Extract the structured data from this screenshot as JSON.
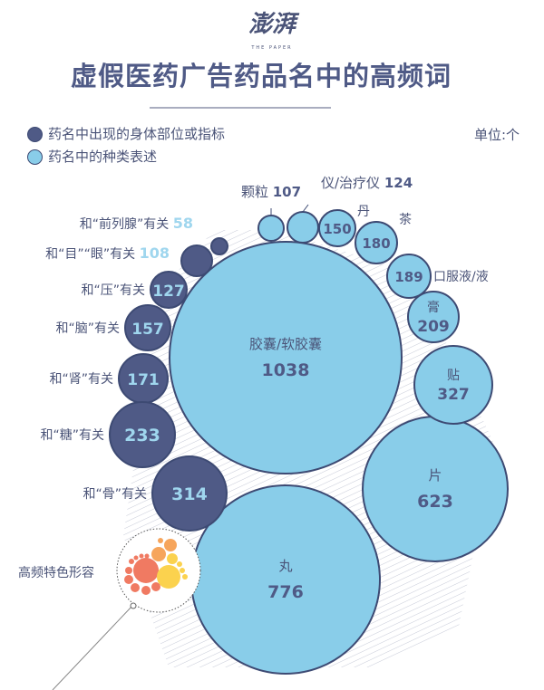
{
  "logo": {
    "text": "澎湃",
    "sub": "THE PAPER"
  },
  "title": "虚假医药广告药品名中的高频词",
  "legend": [
    {
      "label": "药名中出现的身体部位或指标",
      "color": "#4f5a86"
    },
    {
      "label": "药名中的种类表述",
      "color": "#89cde9"
    }
  ],
  "unit": "单位:个",
  "magnifier_label": "高频特色形容",
  "chart_data": {
    "type": "bubble",
    "title": "虚假医药广告药品名中的高频词",
    "unit": "个",
    "series": [
      {
        "name": "药名中出现的身体部位或指标",
        "color": "#4f5a86",
        "points": [
          {
            "label": "和“前列腺”有关",
            "value": 58
          },
          {
            "label": "和“目”“眼”有关",
            "value": 108
          },
          {
            "label": "和“压”有关",
            "value": 127
          },
          {
            "label": "和“脑”有关",
            "value": 157
          },
          {
            "label": "和“肾”有关",
            "value": 171
          },
          {
            "label": "和“糖”有关",
            "value": 233
          },
          {
            "label": "和“骨”有关",
            "value": 314
          }
        ]
      },
      {
        "name": "药名中的种类表述",
        "color": "#89cde9",
        "points": [
          {
            "label": "胶囊/软胶囊",
            "value": 1038
          },
          {
            "label": "丸",
            "value": 776
          },
          {
            "label": "片",
            "value": 623
          },
          {
            "label": "贴",
            "value": 327
          },
          {
            "label": "膏",
            "value": 209
          },
          {
            "label": "口服液/液",
            "value": 189
          },
          {
            "label": "茶",
            "value": 180
          },
          {
            "label": "丹",
            "value": 150
          },
          {
            "label": "仪/治疗仪",
            "value": 124
          },
          {
            "label": "颗粒",
            "value": 107
          }
        ]
      }
    ]
  }
}
